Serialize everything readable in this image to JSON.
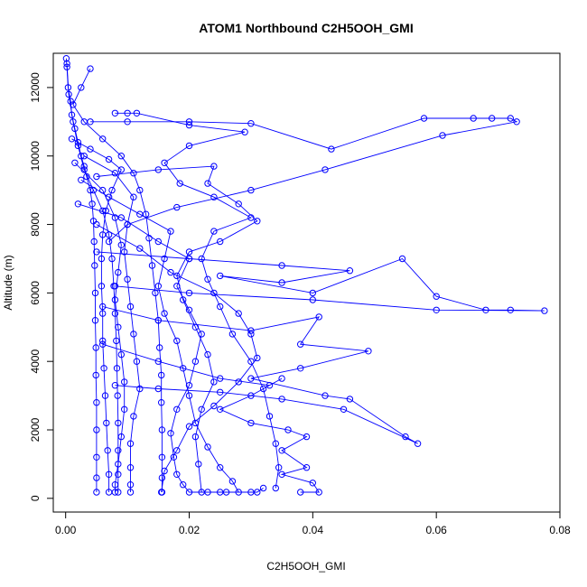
{
  "chart_data": {
    "type": "line",
    "title": "ATOM1 Northbound C2H5OOH_GMI",
    "xlabel": "C2H5OOH_GMI",
    "ylabel": "Altitude (m)",
    "xlim": [
      -0.002,
      0.08
    ],
    "ylim": [
      -400,
      13000
    ],
    "x_ticks": [
      0.0,
      0.02,
      0.04,
      0.06,
      0.08
    ],
    "x_tick_labels": [
      "0.00",
      "0.02",
      "0.04",
      "0.06",
      "0.08"
    ],
    "y_ticks": [
      0,
      2000,
      4000,
      6000,
      8000,
      10000,
      12000
    ],
    "y_tick_labels": [
      "0",
      "2000",
      "4000",
      "6000",
      "8000",
      "10000",
      "12000"
    ],
    "grid": false,
    "legend": "none",
    "color": "#0000ff",
    "series": [
      {
        "points": [
          [
            0.0001,
            12850
          ],
          [
            0.0002,
            12600
          ],
          [
            0.0004,
            12000
          ],
          [
            0.0008,
            11600
          ],
          [
            0.001,
            11200
          ],
          [
            0.0015,
            10800
          ],
          [
            0.002,
            10400
          ],
          [
            0.0025,
            10000
          ],
          [
            0.003,
            9700
          ],
          [
            0.0034,
            9400
          ],
          [
            0.004,
            9000
          ],
          [
            0.0043,
            8600
          ],
          [
            0.0045,
            8100
          ],
          [
            0.0046,
            7500
          ],
          [
            0.0047,
            6800
          ],
          [
            0.0048,
            6000
          ],
          [
            0.0048,
            5200
          ],
          [
            0.0049,
            4400
          ],
          [
            0.0049,
            3600
          ],
          [
            0.005,
            2800
          ],
          [
            0.005,
            2000
          ],
          [
            0.005,
            1200
          ],
          [
            0.005,
            600
          ],
          [
            0.005,
            180
          ]
        ]
      },
      {
        "points": [
          [
            0.0002,
            12700
          ],
          [
            0.0005,
            11800
          ],
          [
            0.0012,
            11000
          ],
          [
            0.002,
            10300
          ],
          [
            0.003,
            9600
          ],
          [
            0.0045,
            9000
          ],
          [
            0.006,
            8400
          ],
          [
            0.007,
            7700
          ],
          [
            0.0075,
            7000
          ],
          [
            0.0078,
            6200
          ],
          [
            0.008,
            5400
          ],
          [
            0.0082,
            4600
          ],
          [
            0.0083,
            3800
          ],
          [
            0.0084,
            3000
          ],
          [
            0.0085,
            2200
          ],
          [
            0.0085,
            1400
          ],
          [
            0.0085,
            700
          ],
          [
            0.0085,
            180
          ]
        ]
      },
      {
        "points": [
          [
            0.004,
            12550
          ],
          [
            0.0025,
            12000
          ],
          [
            0.0012,
            11500
          ],
          [
            0.003,
            11000
          ],
          [
            0.006,
            10500
          ],
          [
            0.009,
            10000
          ],
          [
            0.011,
            9500
          ],
          [
            0.012,
            9000
          ],
          [
            0.013,
            8300
          ],
          [
            0.0135,
            7600
          ],
          [
            0.014,
            6800
          ],
          [
            0.0145,
            6000
          ],
          [
            0.015,
            5200
          ],
          [
            0.0152,
            4400
          ],
          [
            0.0155,
            3600
          ],
          [
            0.0155,
            2800
          ],
          [
            0.0156,
            2000
          ],
          [
            0.0156,
            1200
          ],
          [
            0.0156,
            600
          ],
          [
            0.0156,
            180
          ]
        ]
      },
      {
        "points": [
          [
            0.008,
            11250
          ],
          [
            0.01,
            11250
          ],
          [
            0.0115,
            11250
          ],
          [
            0.02,
            10900
          ],
          [
            0.029,
            10700
          ],
          [
            0.02,
            10300
          ],
          [
            0.016,
            9800
          ],
          [
            0.0185,
            9200
          ],
          [
            0.024,
            8800
          ],
          [
            0.03,
            8200
          ],
          [
            0.024,
            7800
          ],
          [
            0.022,
            7000
          ],
          [
            0.023,
            6400
          ],
          [
            0.025,
            5600
          ],
          [
            0.027,
            4800
          ],
          [
            0.03,
            4000
          ],
          [
            0.032,
            3200
          ],
          [
            0.033,
            2400
          ],
          [
            0.034,
            1600
          ],
          [
            0.0345,
            900
          ],
          [
            0.034,
            300
          ]
        ]
      },
      {
        "points": [
          [
            0.004,
            11000
          ],
          [
            0.01,
            11000
          ],
          [
            0.02,
            11000
          ],
          [
            0.03,
            10950
          ],
          [
            0.043,
            10200
          ],
          [
            0.058,
            11100
          ],
          [
            0.066,
            11100
          ],
          [
            0.069,
            11100
          ],
          [
            0.072,
            11100
          ],
          [
            0.073,
            11000
          ],
          [
            0.061,
            10600
          ],
          [
            0.042,
            9600
          ],
          [
            0.03,
            9000
          ],
          [
            0.018,
            8500
          ],
          [
            0.01,
            8000
          ],
          [
            0.007,
            7500
          ]
        ]
      },
      {
        "points": [
          [
            0.005,
            9400
          ],
          [
            0.015,
            9600
          ],
          [
            0.024,
            9700
          ],
          [
            0.023,
            9200
          ],
          [
            0.028,
            8600
          ],
          [
            0.031,
            8100
          ],
          [
            0.025,
            7500
          ],
          [
            0.02,
            7200
          ],
          [
            0.018,
            6500
          ],
          [
            0.019,
            5800
          ],
          [
            0.021,
            5000
          ],
          [
            0.023,
            4200
          ],
          [
            0.024,
            3400
          ],
          [
            0.022,
            2600
          ],
          [
            0.021,
            1800
          ],
          [
            0.0215,
            1000
          ],
          [
            0.022,
            180
          ],
          [
            0.026,
            180
          ],
          [
            0.03,
            180
          ]
        ]
      },
      {
        "points": [
          [
            0.005,
            7200
          ],
          [
            0.02,
            7000
          ],
          [
            0.035,
            6800
          ],
          [
            0.046,
            6650
          ],
          [
            0.035,
            6300
          ],
          [
            0.025,
            6500
          ],
          [
            0.04,
            6000
          ],
          [
            0.0545,
            7000
          ],
          [
            0.06,
            5900
          ],
          [
            0.068,
            5500
          ],
          [
            0.072,
            5500
          ],
          [
            0.0775,
            5480
          ],
          [
            0.06,
            5500
          ],
          [
            0.04,
            5800
          ],
          [
            0.02,
            6000
          ],
          [
            0.008,
            6200
          ]
        ]
      },
      {
        "points": [
          [
            0.006,
            5600
          ],
          [
            0.015,
            5200
          ],
          [
            0.03,
            4900
          ],
          [
            0.041,
            5300
          ],
          [
            0.038,
            4500
          ],
          [
            0.049,
            4300
          ],
          [
            0.038,
            3800
          ],
          [
            0.03,
            3500
          ],
          [
            0.042,
            3000
          ],
          [
            0.046,
            2900
          ],
          [
            0.055,
            1800
          ],
          [
            0.057,
            1600
          ],
          [
            0.045,
            2600
          ],
          [
            0.035,
            2900
          ],
          [
            0.025,
            3100
          ],
          [
            0.015,
            3200
          ],
          [
            0.008,
            3300
          ]
        ]
      },
      {
        "points": [
          [
            0.006,
            4500
          ],
          [
            0.015,
            4000
          ],
          [
            0.025,
            3500
          ],
          [
            0.033,
            3300
          ],
          [
            0.035,
            3500
          ],
          [
            0.03,
            3000
          ],
          [
            0.025,
            2600
          ],
          [
            0.03,
            2200
          ],
          [
            0.036,
            2000
          ],
          [
            0.039,
            1800
          ],
          [
            0.035,
            1400
          ],
          [
            0.039,
            900
          ],
          [
            0.035,
            700
          ],
          [
            0.04,
            450
          ],
          [
            0.041,
            180
          ],
          [
            0.038,
            180
          ]
        ]
      },
      {
        "points": [
          [
            0.002,
            8600
          ],
          [
            0.009,
            8200
          ],
          [
            0.015,
            7500
          ],
          [
            0.02,
            7000
          ],
          [
            0.018,
            6200
          ],
          [
            0.02,
            5500
          ],
          [
            0.022,
            4800
          ],
          [
            0.021,
            4000
          ],
          [
            0.02,
            3300
          ],
          [
            0.018,
            2600
          ],
          [
            0.017,
            1900
          ],
          [
            0.0175,
            1200
          ],
          [
            0.018,
            700
          ],
          [
            0.019,
            400
          ],
          [
            0.02,
            180
          ],
          [
            0.023,
            180
          ],
          [
            0.025,
            180
          ]
        ]
      },
      {
        "points": [
          [
            0.003,
            10000
          ],
          [
            0.008,
            9500
          ],
          [
            0.011,
            8800
          ],
          [
            0.01,
            8000
          ],
          [
            0.0095,
            7200
          ],
          [
            0.01,
            6400
          ],
          [
            0.0105,
            5600
          ],
          [
            0.011,
            4800
          ],
          [
            0.0115,
            4000
          ],
          [
            0.012,
            3200
          ],
          [
            0.011,
            2400
          ],
          [
            0.0105,
            1600
          ],
          [
            0.0105,
            900
          ],
          [
            0.0105,
            400
          ],
          [
            0.0105,
            180
          ]
        ]
      },
      {
        "points": [
          [
            0.0015,
            9800
          ],
          [
            0.006,
            9000
          ],
          [
            0.008,
            8200
          ],
          [
            0.009,
            7400
          ],
          [
            0.0085,
            6600
          ],
          [
            0.008,
            5800
          ],
          [
            0.0085,
            5000
          ],
          [
            0.009,
            4200
          ],
          [
            0.0095,
            3400
          ],
          [
            0.0095,
            2600
          ],
          [
            0.009,
            1800
          ],
          [
            0.0085,
            1000
          ],
          [
            0.008,
            400
          ],
          [
            0.008,
            180
          ]
        ]
      },
      {
        "points": [
          [
            0.0025,
            9300
          ],
          [
            0.007,
            8800
          ],
          [
            0.012,
            8300
          ],
          [
            0.017,
            7800
          ],
          [
            0.016,
            7000
          ],
          [
            0.015,
            6200
          ],
          [
            0.016,
            5400
          ],
          [
            0.018,
            4600
          ],
          [
            0.019,
            3800
          ],
          [
            0.02,
            3000
          ],
          [
            0.021,
            2200
          ],
          [
            0.023,
            1500
          ],
          [
            0.025,
            900
          ],
          [
            0.027,
            500
          ],
          [
            0.028,
            180
          ],
          [
            0.031,
            180
          ],
          [
            0.032,
            300
          ]
        ]
      },
      {
        "points": [
          [
            0.005,
            8000
          ],
          [
            0.012,
            7300
          ],
          [
            0.017,
            6600
          ],
          [
            0.024,
            6000
          ],
          [
            0.028,
            5400
          ],
          [
            0.03,
            4800
          ],
          [
            0.031,
            4100
          ],
          [
            0.028,
            3400
          ],
          [
            0.024,
            2700
          ],
          [
            0.02,
            2100
          ],
          [
            0.018,
            1400
          ],
          [
            0.016,
            800
          ],
          [
            0.0155,
            180
          ]
        ]
      },
      {
        "points": [
          [
            0.001,
            10500
          ],
          [
            0.004,
            10200
          ],
          [
            0.007,
            9900
          ],
          [
            0.009,
            9600
          ],
          [
            0.0075,
            9000
          ],
          [
            0.0065,
            8400
          ],
          [
            0.006,
            7700
          ],
          [
            0.0058,
            7000
          ],
          [
            0.0058,
            6200
          ],
          [
            0.006,
            5400
          ],
          [
            0.006,
            4600
          ],
          [
            0.0062,
            3800
          ],
          [
            0.0064,
            3000
          ],
          [
            0.0066,
            2200
          ],
          [
            0.0068,
            1400
          ],
          [
            0.007,
            700
          ],
          [
            0.007,
            180
          ]
        ]
      }
    ]
  }
}
